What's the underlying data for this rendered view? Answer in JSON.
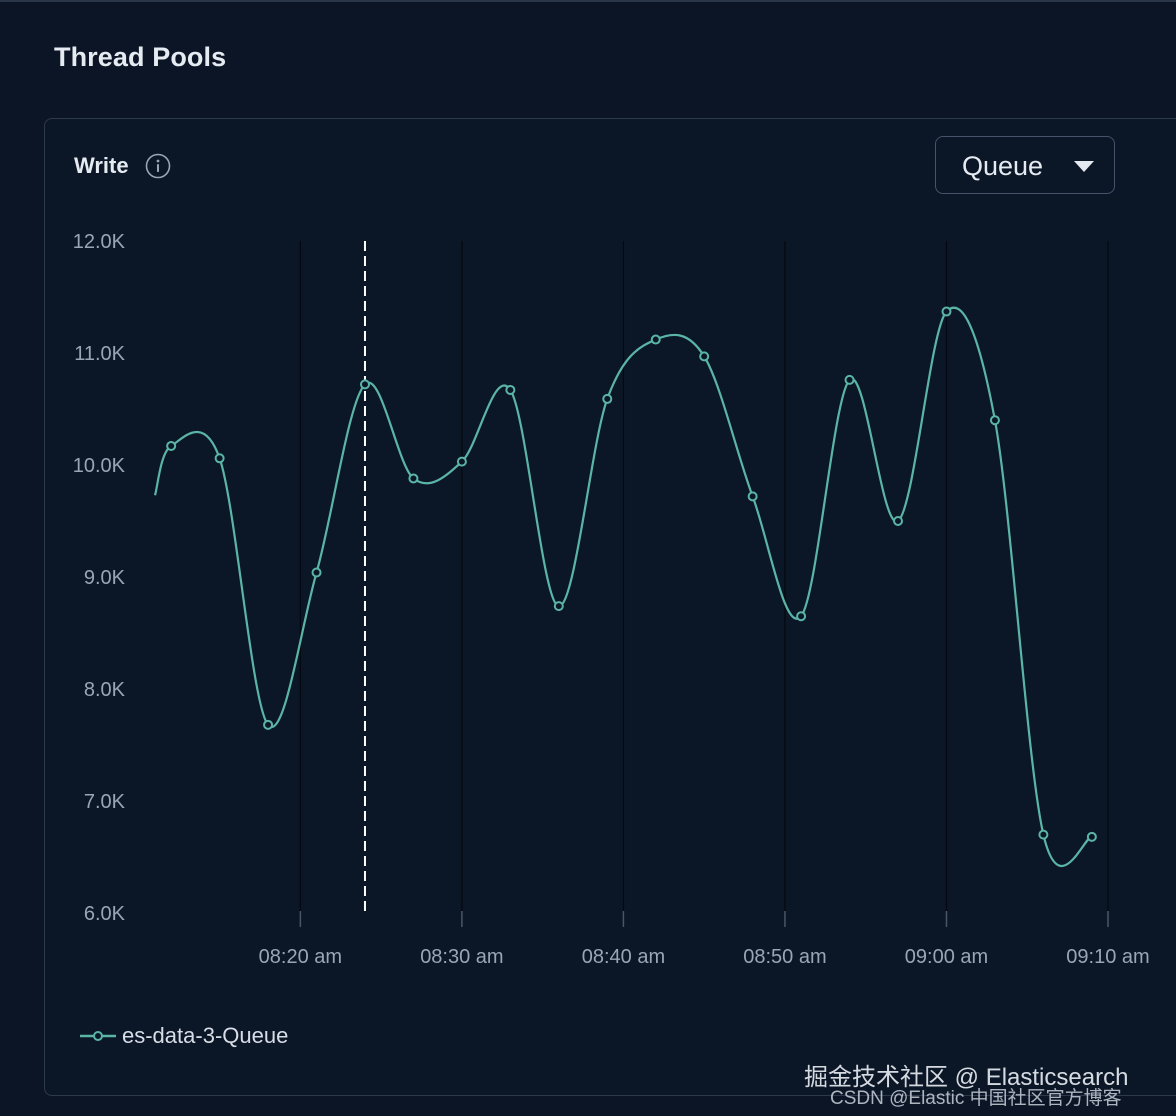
{
  "section": {
    "title": "Thread Pools"
  },
  "panel": {
    "title": "Write",
    "info_icon": "info-circle-icon",
    "metric_select": {
      "value": "Queue",
      "icon": "caret-down-icon"
    }
  },
  "colors": {
    "background": "#0b1526",
    "series": "#5bb5a6",
    "crosshair": "#ffffff",
    "grid": "#000000"
  },
  "chart_data": {
    "type": "line",
    "title": "Write",
    "xlabel": "",
    "ylabel": "",
    "ylim": [
      6000,
      12000
    ],
    "y_ticks": [
      "12.0K",
      "11.0K",
      "10.0K",
      "9.0K",
      "8.0K",
      "7.0K",
      "6.0K"
    ],
    "y_tick_values": [
      12000,
      11000,
      10000,
      9000,
      8000,
      7000,
      6000
    ],
    "xlim": [
      "08:11",
      "09:10"
    ],
    "x_ticks": [
      "08:20 am",
      "08:30 am",
      "08:40 am",
      "08:50 am",
      "09:00 am",
      "09:10 am"
    ],
    "x_tick_values": [
      "08:20",
      "08:30",
      "08:40",
      "08:50",
      "09:00",
      "09:10"
    ],
    "crosshair_x": "08:24",
    "grid": "vertical",
    "legend_position": "bottom-left",
    "series": [
      {
        "name": "es-data-3-Queue",
        "x": [
          "08:12",
          "08:15",
          "08:18",
          "08:21",
          "08:24",
          "08:27",
          "08:30",
          "08:33",
          "08:36",
          "08:39",
          "08:42",
          "08:45",
          "08:48",
          "08:51",
          "08:54",
          "08:57",
          "09:00",
          "09:03",
          "09:06",
          "09:09"
        ],
        "values": [
          10170,
          10060,
          7680,
          9040,
          10720,
          9880,
          10030,
          10670,
          8740,
          10590,
          11120,
          10970,
          9720,
          8650,
          10760,
          9500,
          11370,
          10400,
          6700,
          6680
        ]
      }
    ]
  },
  "watermark": {
    "line1": "掘金技术社区 @ Elasticsearch",
    "line2": "CSDN @Elastic 中国社区官方博客"
  }
}
